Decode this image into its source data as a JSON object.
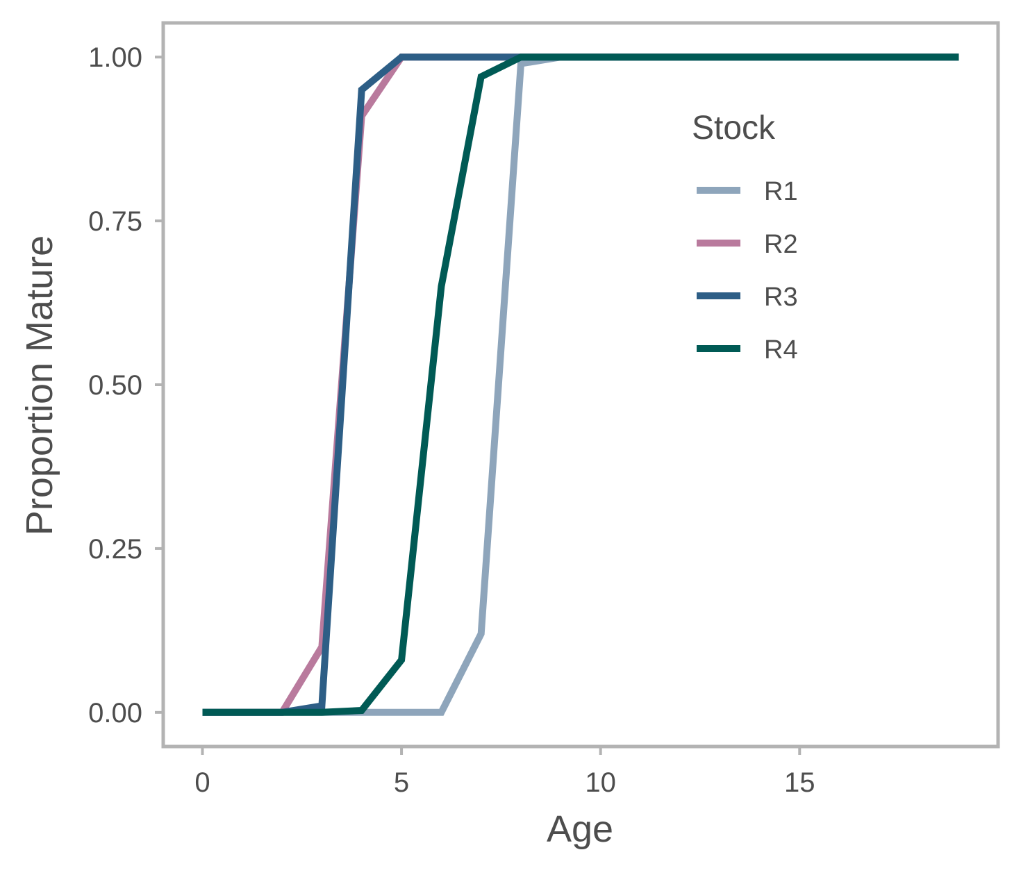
{
  "chart_data": {
    "type": "line",
    "title": "",
    "xlabel": "Age",
    "ylabel": "Proportion Mature",
    "xlim": [
      -0.95,
      19.95
    ],
    "ylim": [
      -0.05,
      1.05
    ],
    "xticks": [
      0,
      5,
      10,
      15
    ],
    "xtick_labels": [
      "0",
      "5",
      "10",
      "15"
    ],
    "yticks": [
      0,
      0.25,
      0.5,
      0.75,
      1.0
    ],
    "ytick_labels": [
      "0.00",
      "0.25",
      "0.50",
      "0.75",
      "1.00"
    ],
    "grid": false,
    "legend": {
      "title": "Stock",
      "placement": "top-right (inside)"
    },
    "x": [
      0,
      1,
      2,
      3,
      4,
      5,
      6,
      7,
      8,
      9,
      10,
      11,
      12,
      13,
      14,
      15,
      16,
      17,
      18,
      19
    ],
    "series": [
      {
        "name": "R1",
        "color": "#8ea5bb",
        "values": [
          0,
          0,
          0,
          0,
          0,
          0,
          0,
          0.12,
          0.99,
          1,
          1,
          1,
          1,
          1,
          1,
          1,
          1,
          1,
          1,
          1
        ]
      },
      {
        "name": "R2",
        "color": "#b97a9d",
        "values": [
          0,
          0,
          0,
          0.1,
          0.91,
          1,
          1,
          1,
          1,
          1,
          1,
          1,
          1,
          1,
          1,
          1,
          1,
          1,
          1,
          1
        ]
      },
      {
        "name": "R3",
        "color": "#2d5e86",
        "values": [
          0,
          0,
          0,
          0.01,
          0.95,
          1,
          1,
          1,
          1,
          1,
          1,
          1,
          1,
          1,
          1,
          1,
          1,
          1,
          1,
          1
        ]
      },
      {
        "name": "R4",
        "color": "#005a55",
        "values": [
          0,
          0,
          0,
          0,
          0.003,
          0.08,
          0.65,
          0.97,
          1,
          1,
          1,
          1,
          1,
          1,
          1,
          1,
          1,
          1,
          1,
          1
        ]
      }
    ]
  }
}
